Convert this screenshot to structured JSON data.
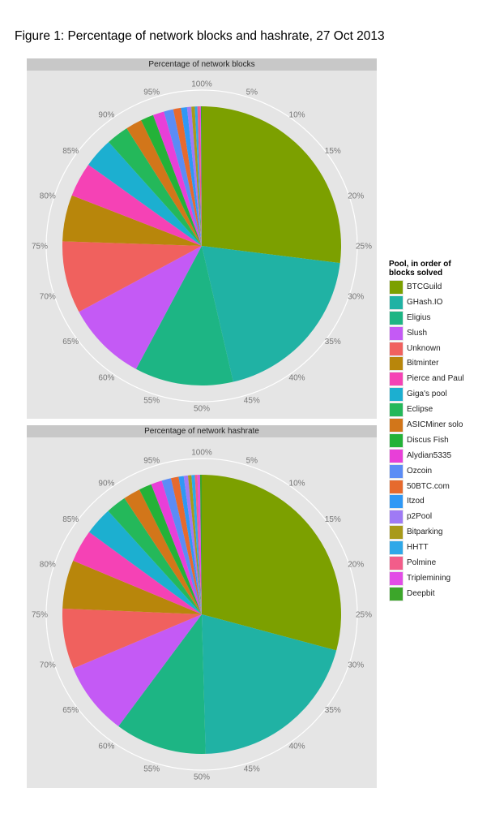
{
  "figure_title": "Figure 1: Percentage of network blocks and hashrate, 27 Oct 2013",
  "legend": {
    "title_line1": "Pool, in order of",
    "title_line2": "blocks solved"
  },
  "colors": [
    "#7CA000",
    "#20B2A4",
    "#1DB584",
    "#C45AF5",
    "#F0615E",
    "#B8860B",
    "#F542B5",
    "#1CAFD0",
    "#24B85A",
    "#D2761A",
    "#24B238",
    "#E83FD8",
    "#5B8CF5",
    "#E66A2E",
    "#2F98F5",
    "#9F7AF5",
    "#A89A1A",
    "#2FA8E8",
    "#F25D8A",
    "#E24DE6",
    "#3CA62A"
  ],
  "chart_data": [
    {
      "type": "pie",
      "title": "Percentage of network blocks",
      "tick_labels": [
        "5%",
        "10%",
        "15%",
        "20%",
        "25%",
        "30%",
        "35%",
        "40%",
        "45%",
        "50%",
        "55%",
        "60%",
        "65%",
        "70%",
        "75%",
        "80%",
        "85%",
        "90%",
        "95%",
        "100%"
      ],
      "categories": [
        "BTCGuild",
        "GHash.IO",
        "Eligius",
        "Slush",
        "Unknown",
        "Bitminter",
        "Pierce and Paul",
        "Giga's pool",
        "Eclipse",
        "ASICMiner solo",
        "Discus Fish",
        "Alydian5335",
        "Ozcoin",
        "50BTC.com",
        "Itzod",
        "p2Pool",
        "Bitparking",
        "HHTT",
        "Polmine",
        "Triplemining",
        "Deepbit"
      ],
      "values": [
        27.1,
        19.5,
        11.5,
        9.4,
        8.4,
        5.4,
        4.0,
        3.5,
        2.6,
        1.9,
        1.5,
        1.3,
        1.1,
        0.9,
        0.7,
        0.5,
        0.4,
        0.3,
        0.3,
        0.1,
        0.1
      ]
    },
    {
      "type": "pie",
      "title": "Percentage of network hashrate",
      "tick_labels": [
        "5%",
        "10%",
        "15%",
        "20%",
        "25%",
        "30%",
        "35%",
        "40%",
        "45%",
        "50%",
        "55%",
        "60%",
        "65%",
        "70%",
        "75%",
        "80%",
        "85%",
        "90%",
        "95%",
        "100%"
      ],
      "categories": [
        "BTCGuild",
        "GHash.IO",
        "Eligius",
        "Slush",
        "Unknown",
        "Bitminter",
        "Pierce and Paul",
        "Giga's pool",
        "Eclipse",
        "ASICMiner solo",
        "Discus Fish",
        "Alydian5335",
        "Ozcoin",
        "50BTC.com",
        "Itzod",
        "p2Pool",
        "Bitparking",
        "HHTT",
        "Polmine",
        "Triplemining",
        "Deepbit"
      ],
      "values": [
        29.6,
        20.7,
        10.8,
        8.6,
        7.1,
        5.7,
        3.8,
        3.3,
        2.4,
        2.0,
        1.5,
        1.3,
        1.1,
        0.9,
        0.6,
        0.5,
        0.4,
        0.4,
        0.3,
        0.3,
        0.2
      ]
    }
  ]
}
